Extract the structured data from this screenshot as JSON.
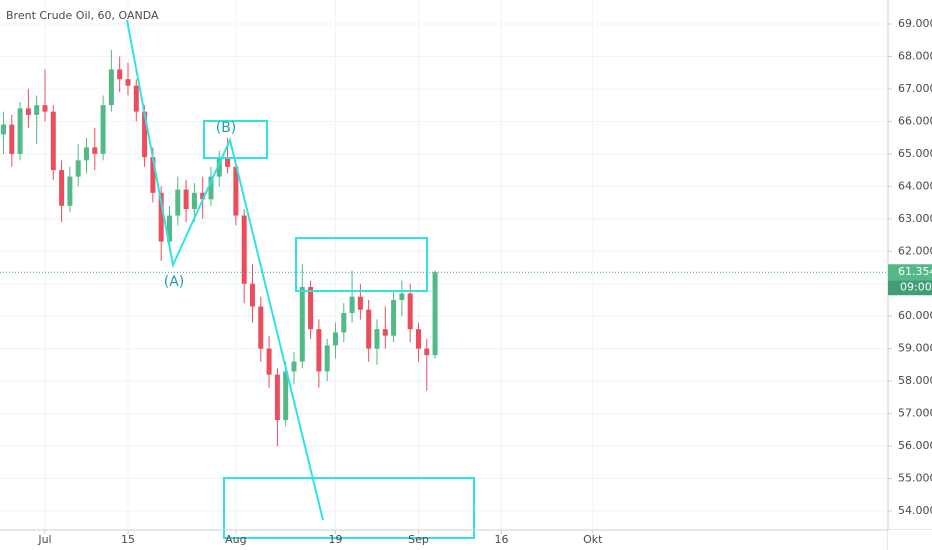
{
  "chart_data": {
    "type": "candlestick",
    "title": "Brent Crude Oil, 60, OANDA",
    "x": [
      -5,
      -4,
      -3,
      -2,
      -1,
      0,
      1,
      2,
      3,
      4,
      5,
      6,
      7,
      8,
      9,
      10,
      11,
      12,
      13,
      14,
      15,
      16,
      17,
      18,
      19,
      20,
      21,
      22,
      23,
      24,
      25,
      26,
      27,
      28,
      29,
      30,
      31,
      32,
      33,
      34,
      35,
      36,
      37,
      38,
      39,
      40,
      41,
      42,
      43,
      44,
      45,
      46,
      47
    ],
    "open": [
      65.6,
      65.9,
      65.0,
      66.4,
      66.2,
      66.5,
      66.3,
      64.5,
      63.4,
      64.3,
      64.8,
      65.2,
      65.0,
      66.5,
      67.6,
      67.3,
      67.1,
      66.3,
      64.9,
      63.8,
      62.3,
      63.1,
      63.9,
      63.3,
      63.8,
      63.6,
      64.3,
      64.9,
      64.6,
      63.1,
      61.0,
      60.3,
      59.0,
      58.2,
      56.8,
      58.3,
      58.6,
      60.9,
      59.6,
      58.3,
      59.1,
      59.5,
      60.1,
      60.6,
      60.2,
      59.0,
      59.6,
      59.4,
      60.5,
      60.7,
      59.6,
      59.0,
      58.8
    ],
    "high": [
      66.3,
      66.2,
      66.6,
      67.0,
      66.8,
      67.6,
      66.5,
      64.8,
      64.6,
      65.3,
      65.5,
      65.8,
      66.8,
      68.2,
      68.0,
      67.8,
      67.3,
      66.5,
      65.2,
      64.0,
      63.4,
      64.3,
      64.2,
      64.1,
      64.3,
      64.6,
      65.1,
      65.5,
      64.8,
      63.3,
      61.6,
      60.6,
      59.4,
      58.4,
      58.6,
      58.9,
      61.6,
      61.1,
      59.9,
      59.3,
      59.8,
      60.4,
      61.4,
      61.0,
      60.5,
      59.9,
      60.3,
      60.8,
      61.1,
      61.0,
      59.8,
      59.3,
      61.4
    ],
    "low": [
      65.0,
      64.6,
      64.8,
      65.8,
      65.3,
      66.0,
      64.2,
      62.9,
      63.2,
      64.0,
      64.4,
      64.5,
      64.8,
      66.3,
      66.9,
      66.8,
      66.0,
      64.6,
      63.5,
      61.7,
      62.0,
      62.8,
      62.9,
      62.9,
      63.0,
      63.4,
      64.0,
      64.4,
      62.8,
      60.4,
      59.8,
      58.6,
      57.8,
      56.0,
      56.6,
      57.9,
      58.4,
      59.3,
      57.8,
      58.0,
      58.7,
      59.2,
      59.8,
      59.9,
      58.6,
      58.5,
      59.0,
      59.2,
      60.0,
      59.2,
      58.6,
      57.7,
      58.7
    ],
    "close": [
      65.9,
      65.0,
      66.4,
      66.2,
      66.5,
      66.3,
      64.5,
      63.4,
      64.3,
      64.8,
      65.2,
      65.0,
      66.5,
      67.6,
      67.3,
      67.1,
      66.3,
      64.9,
      63.8,
      62.3,
      63.1,
      63.9,
      63.3,
      63.8,
      63.6,
      64.3,
      64.9,
      64.6,
      63.1,
      61.0,
      60.3,
      59.0,
      58.2,
      56.8,
      58.3,
      58.6,
      60.9,
      59.6,
      58.3,
      59.1,
      59.5,
      60.1,
      60.6,
      60.2,
      59.0,
      59.6,
      59.4,
      60.5,
      60.7,
      59.6,
      59.0,
      58.8,
      61.354
    ],
    "up_color": "#53b987",
    "down_color": "#eb4d5c",
    "xlim": [
      -5.42,
      101.57
    ],
    "xticks": [
      {
        "value": 0,
        "label": "Jul"
      },
      {
        "value": 10,
        "label": "15"
      },
      {
        "value": 23,
        "label": "Aug"
      },
      {
        "value": 35,
        "label": "19"
      },
      {
        "value": 45,
        "label": "Sep"
      },
      {
        "value": 55,
        "label": "16"
      },
      {
        "value": 66,
        "label": "Okt"
      }
    ],
    "ylim": [
      53.415,
      69.739
    ],
    "yticks": [
      {
        "value": 54,
        "label": "54.000"
      },
      {
        "value": 55,
        "label": "55.000"
      },
      {
        "value": 56,
        "label": "56.000"
      },
      {
        "value": 57,
        "label": "57.000"
      },
      {
        "value": 58,
        "label": "58.000"
      },
      {
        "value": 59,
        "label": "59.000"
      },
      {
        "value": 60,
        "label": "60.000"
      },
      {
        "value": 61,
        "label": "61.000"
      },
      {
        "value": 62,
        "label": "62.000"
      },
      {
        "value": 63,
        "label": "63.000"
      },
      {
        "value": 64,
        "label": "64.000"
      },
      {
        "value": 65,
        "label": "65.000"
      },
      {
        "value": 66,
        "label": "66.000"
      },
      {
        "value": 67,
        "label": "67.000"
      },
      {
        "value": 68,
        "label": "68.000"
      },
      {
        "value": 69,
        "label": "69.000"
      }
    ],
    "grid": true,
    "last_price": 61.354,
    "countdown": "09:00",
    "annotations": [
      "(A)",
      "(B)"
    ]
  }
}
